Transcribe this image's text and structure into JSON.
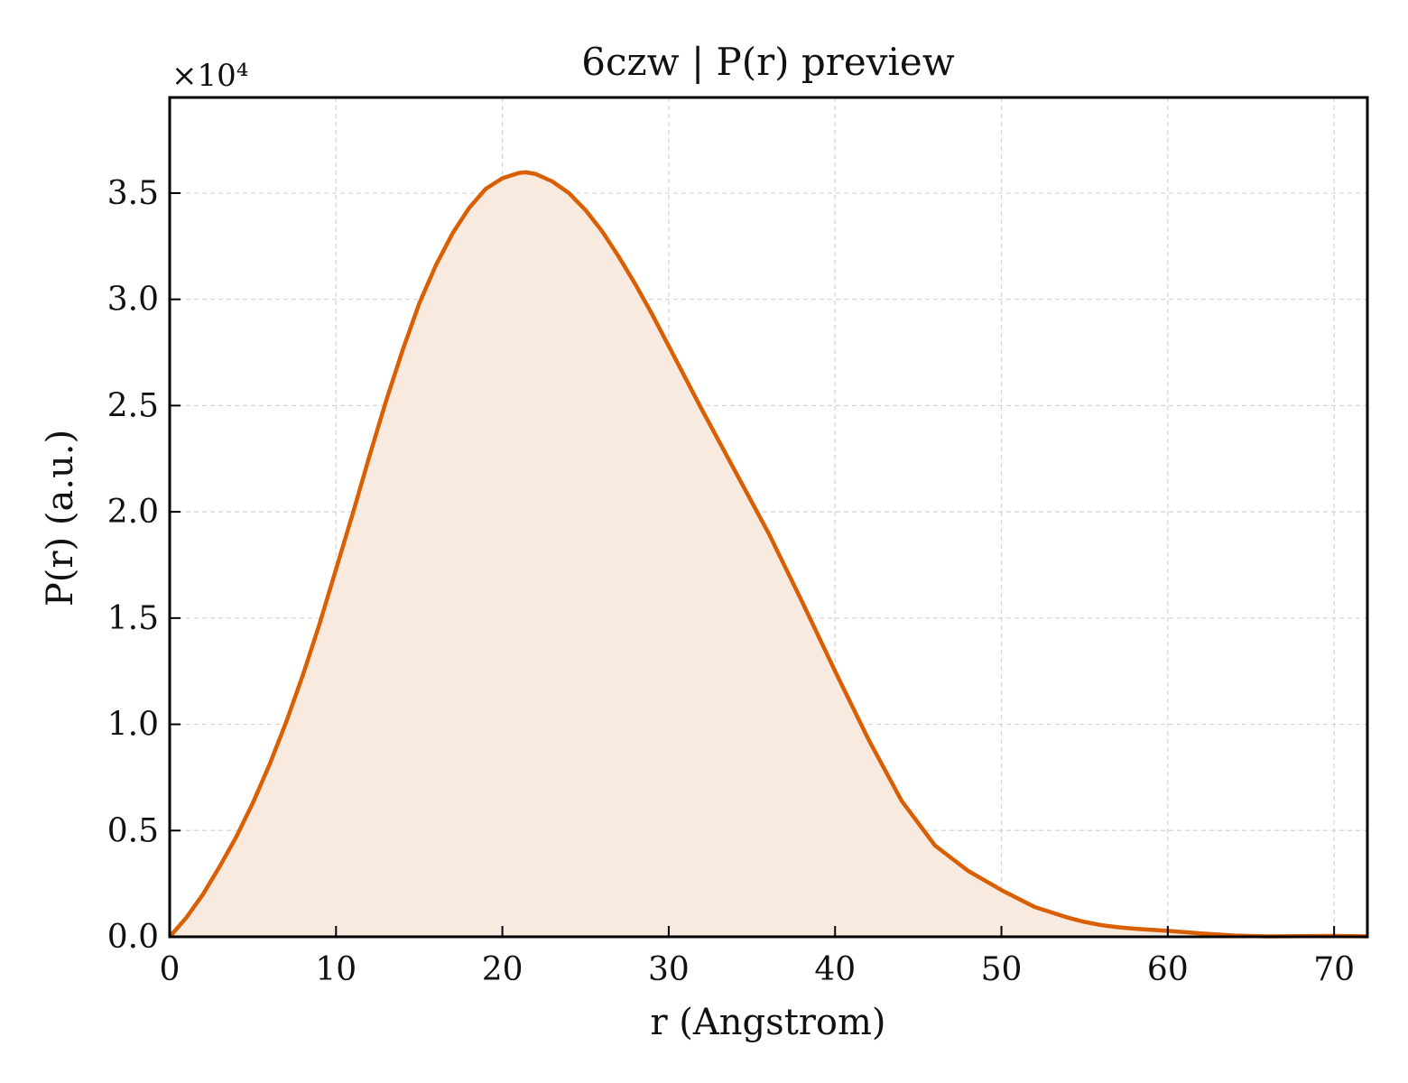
{
  "chart_data": {
    "type": "area",
    "title": "6czw | P(r) preview",
    "xlabel": "r (Angstrom)",
    "ylabel": "P(r) (a.u.)",
    "y_multiplier_label": "×10⁴",
    "y_scale": 10000,
    "xlim": [
      0,
      72
    ],
    "ylim": [
      0,
      39500
    ],
    "x_ticks": [
      0,
      10,
      20,
      30,
      40,
      50,
      60,
      70
    ],
    "x_tick_labels": [
      "0",
      "10",
      "20",
      "30",
      "40",
      "50",
      "60",
      "70"
    ],
    "y_ticks": [
      0,
      5000,
      10000,
      15000,
      20000,
      25000,
      30000,
      35000
    ],
    "y_tick_labels": [
      "0.0",
      "0.5",
      "1.0",
      "1.5",
      "2.0",
      "2.5",
      "3.0",
      "3.5"
    ],
    "grid": true,
    "legend": "none",
    "colors": {
      "line": "#d95f02",
      "fill": "#f8eadf",
      "grid": "#d3d3d3",
      "axis": "#000000"
    },
    "series": [
      {
        "x": [
          0,
          1,
          2,
          3,
          4,
          5,
          6,
          7,
          8,
          9,
          10,
          11,
          12,
          13,
          14,
          15,
          16,
          17,
          18,
          19,
          20,
          21,
          21.4,
          22,
          23,
          24,
          25,
          26,
          27,
          28,
          29,
          30,
          32,
          34,
          36,
          38,
          40,
          42,
          44,
          46,
          48,
          50,
          52,
          54,
          55,
          56,
          57,
          58,
          60,
          62,
          64,
          66,
          68,
          70,
          72
        ],
        "y": [
          0,
          900,
          2000,
          3300,
          4700,
          6300,
          8100,
          10100,
          12300,
          14700,
          17300,
          19900,
          22600,
          25200,
          27600,
          29800,
          31600,
          33100,
          34300,
          35200,
          35700,
          35950,
          35980,
          35900,
          35550,
          35000,
          34200,
          33200,
          32000,
          30700,
          29300,
          27800,
          24800,
          21900,
          19000,
          15800,
          12500,
          9300,
          6400,
          4300,
          3100,
          2200,
          1400,
          900,
          700,
          550,
          450,
          380,
          280,
          160,
          60,
          20,
          30,
          40,
          20
        ]
      }
    ]
  }
}
